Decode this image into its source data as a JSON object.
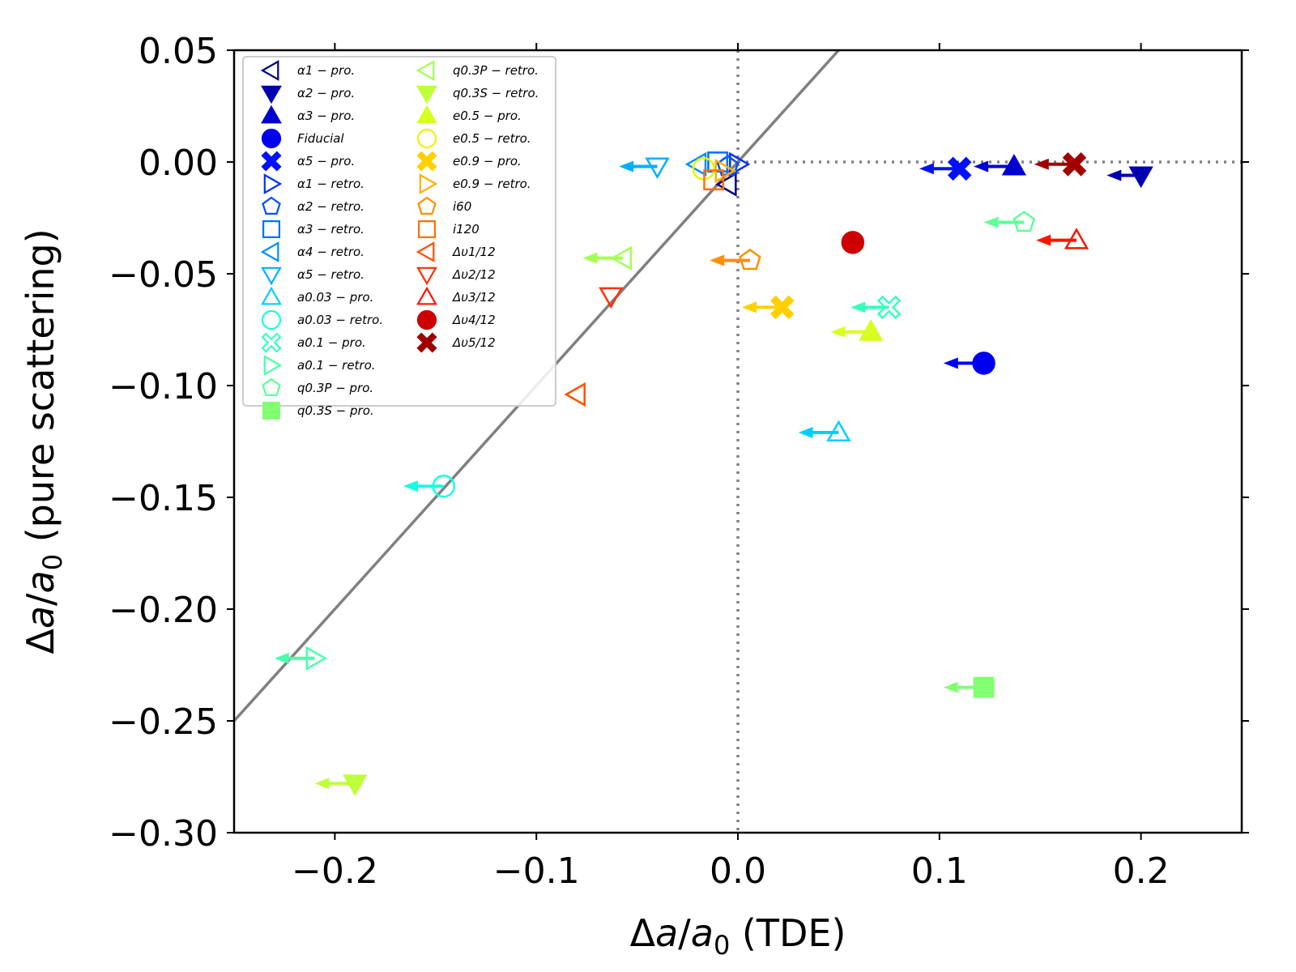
{
  "chart_data": {
    "type": "scatter",
    "xlabel": {
      "prefix": "Δ",
      "a": "a",
      "slash": "/",
      "a0": "a",
      "sub": "0",
      "suffix": " (TDE)"
    },
    "ylabel": {
      "prefix": "Δ",
      "a": "a",
      "slash": "/",
      "a0": "a",
      "sub": "0",
      "suffix": " (pure scattering)"
    },
    "xlim": [
      -0.25,
      0.25
    ],
    "ylim": [
      -0.3,
      0.05
    ],
    "xticks": [
      -0.2,
      -0.1,
      0.0,
      0.1,
      0.2
    ],
    "xtick_labels": [
      "−0.2",
      "−0.1",
      "0.0",
      "0.1",
      "0.2"
    ],
    "yticks": [
      0.05,
      0.0,
      -0.05,
      -0.1,
      -0.15,
      -0.2,
      -0.25,
      -0.3
    ],
    "ytick_labels": [
      "0.05",
      "0.00",
      "−0.05",
      "−0.10",
      "−0.15",
      "−0.20",
      "−0.25",
      "−0.30"
    ],
    "reference_lines": {
      "identity": true,
      "x_zero": true,
      "y_zero": true
    },
    "legend_position": "top-left",
    "series": [
      {
        "name": "α1 − pro.",
        "marker": "triangle-left",
        "filled": false,
        "color": "#000080",
        "x": -0.005,
        "y": -0.01,
        "arrow_to": -0.005
      },
      {
        "name": "α2 − pro.",
        "marker": "triangle-down",
        "filled": true,
        "color": "#0000b0",
        "x": 0.2,
        "y": -0.006,
        "arrow_to": 0.183
      },
      {
        "name": "α3 − pro.",
        "marker": "triangle-up",
        "filled": true,
        "color": "#0000d0",
        "x": 0.137,
        "y": -0.002,
        "arrow_to": 0.117
      },
      {
        "name": "Fiducial",
        "marker": "circle",
        "filled": true,
        "color": "#0000f0",
        "x": 0.122,
        "y": -0.09,
        "arrow_to": 0.102
      },
      {
        "name": "α5 − pro.",
        "marker": "x",
        "filled": true,
        "color": "#0010ff",
        "x": 0.11,
        "y": -0.003,
        "arrow_to": 0.09
      },
      {
        "name": "α1 − retro.",
        "marker": "triangle-right",
        "filled": false,
        "color": "#0030ff",
        "x": 0.0,
        "y": -0.001,
        "arrow_to": 0.0
      },
      {
        "name": "α2 − retro.",
        "marker": "pentagon",
        "filled": false,
        "color": "#0050ff",
        "x": -0.005,
        "y": -0.002,
        "arrow_to": -0.005
      },
      {
        "name": "α3 − retro.",
        "marker": "square",
        "filled": false,
        "color": "#0070ff",
        "x": -0.01,
        "y": 0.0,
        "arrow_to": -0.01
      },
      {
        "name": "α4 − retro.",
        "marker": "triangle-left",
        "filled": false,
        "color": "#0090ff",
        "x": -0.02,
        "y": -0.001,
        "arrow_to": -0.02
      },
      {
        "name": "α5 − retro.",
        "marker": "triangle-down",
        "filled": false,
        "color": "#00b0ff",
        "x": -0.04,
        "y": -0.002,
        "arrow_to": -0.059
      },
      {
        "name": "a0.03 − pro.",
        "marker": "triangle-up",
        "filled": false,
        "color": "#00d0ff",
        "x": 0.05,
        "y": -0.121,
        "arrow_to": 0.03
      },
      {
        "name": "a0.03 − retro.",
        "marker": "circle",
        "filled": false,
        "color": "#16ffe1",
        "x": -0.146,
        "y": -0.145,
        "arrow_to": -0.166
      },
      {
        "name": "a0.1 − pro.",
        "marker": "x",
        "filled": false,
        "color": "#39ffbe",
        "x": 0.075,
        "y": -0.065,
        "arrow_to": 0.056
      },
      {
        "name": "a0.1 − retro.",
        "marker": "triangle-right",
        "filled": false,
        "color": "#4affad",
        "x": -0.21,
        "y": -0.222,
        "arrow_to": -0.23
      },
      {
        "name": "q0.3P − pro.",
        "marker": "pentagon",
        "filled": false,
        "color": "#60ff97",
        "x": 0.142,
        "y": -0.027,
        "arrow_to": 0.122
      },
      {
        "name": "q0.3S − pro.",
        "marker": "square",
        "filled": true,
        "color": "#83ff73",
        "x": 0.122,
        "y": -0.235,
        "arrow_to": 0.102
      },
      {
        "name": "q0.3P − retro.",
        "marker": "triangle-left",
        "filled": false,
        "color": "#a4ff53",
        "x": -0.057,
        "y": -0.043,
        "arrow_to": -0.077
      },
      {
        "name": "q0.3S − retro.",
        "marker": "triangle-down",
        "filled": true,
        "color": "#beff39",
        "x": -0.19,
        "y": -0.278,
        "arrow_to": -0.21
      },
      {
        "name": "e0.5 − pro.",
        "marker": "triangle-up",
        "filled": true,
        "color": "#d7ff1f",
        "x": 0.066,
        "y": -0.076,
        "arrow_to": 0.046
      },
      {
        "name": "e0.5 − retro.",
        "marker": "circle",
        "filled": false,
        "color": "#f0f000",
        "x": -0.017,
        "y": -0.003,
        "arrow_to": -0.017
      },
      {
        "name": "e0.9 − pro.",
        "marker": "x",
        "filled": true,
        "color": "#ffd000",
        "x": 0.022,
        "y": -0.065,
        "arrow_to": 0.002
      },
      {
        "name": "e0.9 − retro.",
        "marker": "triangle-right",
        "filled": false,
        "color": "#ffb000",
        "x": -0.007,
        "y": -0.004,
        "arrow_to": -0.007
      },
      {
        "name": "i60",
        "marker": "pentagon",
        "filled": false,
        "color": "#ff9000",
        "x": 0.006,
        "y": -0.044,
        "arrow_to": -0.014
      },
      {
        "name": "i120",
        "marker": "square",
        "filled": false,
        "color": "#ff7000",
        "x": -0.012,
        "y": -0.008,
        "arrow_to": -0.012
      },
      {
        "name": "Δυ1/12",
        "marker": "triangle-left",
        "filled": false,
        "color": "#ff5000",
        "x": -0.08,
        "y": -0.104,
        "arrow_to": -0.08
      },
      {
        "name": "Δυ2/12",
        "marker": "triangle-down",
        "filled": false,
        "color": "#ff3000",
        "x": -0.063,
        "y": -0.06,
        "arrow_to": -0.063
      },
      {
        "name": "Δυ3/12",
        "marker": "triangle-up",
        "filled": false,
        "color": "#ff1300",
        "x": 0.168,
        "y": -0.035,
        "arrow_to": 0.148
      },
      {
        "name": "Δυ4/12",
        "marker": "circle",
        "filled": true,
        "color": "#cc0000",
        "x": 0.057,
        "y": -0.036,
        "arrow_to": 0.057
      },
      {
        "name": "Δυ5/12",
        "marker": "x",
        "filled": true,
        "color": "#a00000",
        "x": 0.167,
        "y": -0.001,
        "arrow_to": 0.147
      }
    ]
  }
}
